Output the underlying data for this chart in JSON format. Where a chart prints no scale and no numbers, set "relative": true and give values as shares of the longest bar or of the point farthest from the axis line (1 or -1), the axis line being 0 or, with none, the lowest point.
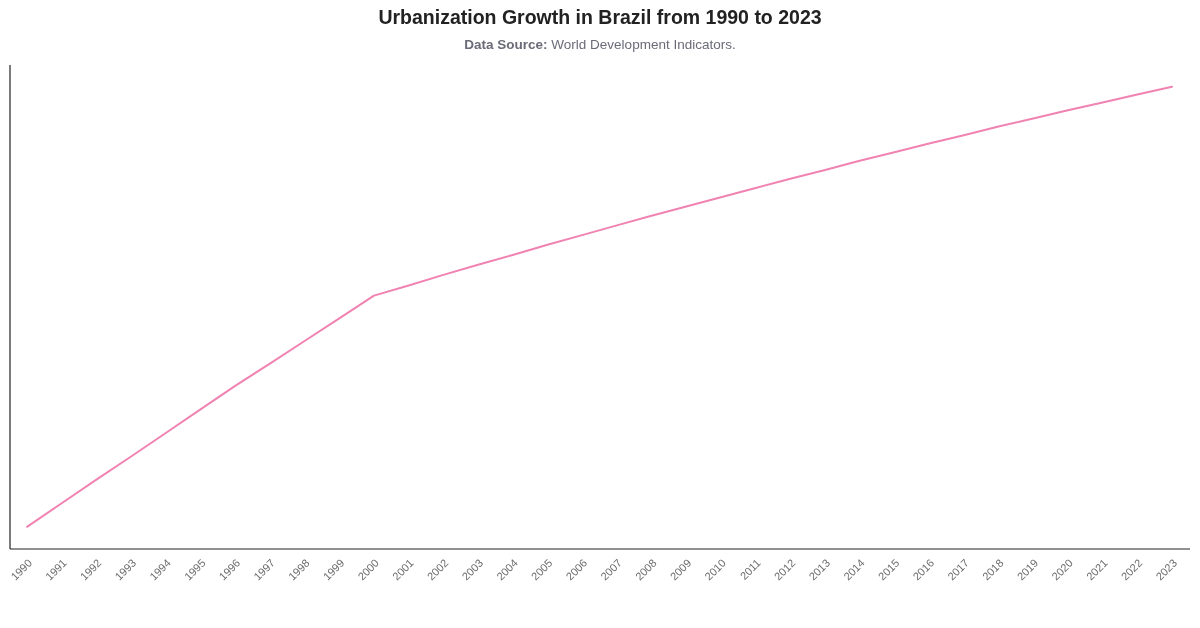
{
  "chart_data": {
    "type": "line",
    "title": "Urbanization Growth in Brazil from 1990 to 2023",
    "subtitle": "Data Source: World Development Indicators.",
    "relative": true,
    "tick_labels": "x",
    "categories": [
      "1990",
      "1991",
      "1992",
      "1993",
      "1994",
      "1995",
      "1996",
      "1997",
      "1998",
      "1999",
      "2000",
      "2001",
      "2002",
      "2003",
      "2004",
      "2005",
      "2006",
      "2007",
      "2008",
      "2009",
      "2010",
      "2011",
      "2012",
      "2013",
      "2014",
      "2015",
      "2016",
      "2017",
      "2018",
      "2019",
      "2020",
      "2021",
      "2022",
      "2023"
    ],
    "series": [
      {
        "color": "#f083b2",
        "values": [
          0.048,
          0.099,
          0.15,
          0.2,
          0.251,
          0.302,
          0.353,
          0.401,
          0.45,
          0.499,
          0.548,
          0.57,
          0.593,
          0.615,
          0.636,
          0.658,
          0.679,
          0.7,
          0.721,
          0.741,
          0.761,
          0.781,
          0.801,
          0.82,
          0.84,
          0.858,
          0.877,
          0.895,
          0.914,
          0.931,
          0.949,
          0.966,
          0.983,
          1
        ]
      }
    ]
  }
}
